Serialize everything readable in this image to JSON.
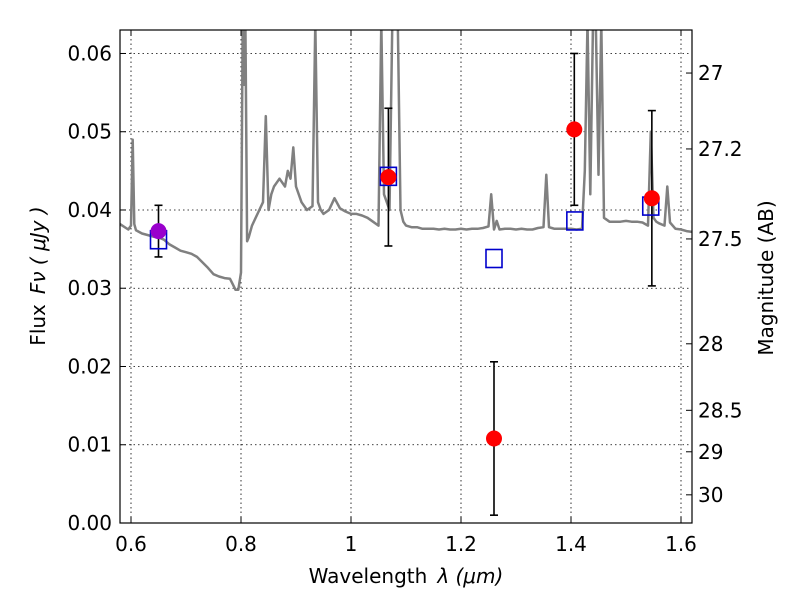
{
  "chart_data": {
    "type": "scatter",
    "title": "",
    "xlabel": "Wavelength",
    "xlabel_math": "λ (μm)",
    "ylabel": "Flux",
    "ylabel_math": "Fν ( μJy )",
    "ylabel_right": "Magnitude (AB)",
    "xlim": [
      0.58,
      1.62
    ],
    "ylim": [
      0.0,
      0.063
    ],
    "xticks": [
      0.6,
      0.8,
      1.0,
      1.2,
      1.4,
      1.6
    ],
    "xtick_labels": [
      "0.6",
      "0.8",
      "1",
      "1.2",
      "1.4",
      "1.6"
    ],
    "yticks": [
      0.0,
      0.01,
      0.02,
      0.03,
      0.04,
      0.05,
      0.06
    ],
    "ytick_labels": [
      "0.00",
      "0.01",
      "0.02",
      "0.03",
      "0.04",
      "0.05",
      "0.06"
    ],
    "right_axis_ticks": [
      {
        "label": "27",
        "flux": 0.0575
      },
      {
        "label": "27.2",
        "flux": 0.0478
      },
      {
        "label": "27.5",
        "flux": 0.0363
      },
      {
        "label": "28",
        "flux": 0.0229
      },
      {
        "label": "28.5",
        "flux": 0.0144
      },
      {
        "label": "29",
        "flux": 0.0091
      },
      {
        "label": "30",
        "flux": 0.0036
      }
    ],
    "grid": true,
    "series": [
      {
        "kind": "line",
        "color": "#808080",
        "x": [
          0.58,
          0.595,
          0.6,
          0.603,
          0.606,
          0.609,
          0.612,
          0.62,
          0.63,
          0.64,
          0.65,
          0.66,
          0.67,
          0.68,
          0.69,
          0.7,
          0.71,
          0.72,
          0.73,
          0.74,
          0.75,
          0.76,
          0.77,
          0.78,
          0.785,
          0.79,
          0.795,
          0.8,
          0.803,
          0.805,
          0.808,
          0.811,
          0.814,
          0.82,
          0.83,
          0.84,
          0.845,
          0.85,
          0.855,
          0.86,
          0.87,
          0.88,
          0.885,
          0.89,
          0.895,
          0.9,
          0.91,
          0.92,
          0.93,
          0.935,
          0.94,
          0.945,
          0.95,
          0.96,
          0.97,
          0.98,
          0.99,
          1.0,
          1.01,
          1.02,
          1.03,
          1.04,
          1.05,
          1.055,
          1.06,
          1.065,
          1.07,
          1.075,
          1.08,
          1.085,
          1.09,
          1.095,
          1.1,
          1.11,
          1.12,
          1.13,
          1.14,
          1.15,
          1.16,
          1.17,
          1.18,
          1.19,
          1.2,
          1.21,
          1.22,
          1.23,
          1.24,
          1.25,
          1.255,
          1.26,
          1.265,
          1.27,
          1.28,
          1.29,
          1.3,
          1.31,
          1.32,
          1.33,
          1.34,
          1.35,
          1.355,
          1.36,
          1.365,
          1.37,
          1.38,
          1.39,
          1.4,
          1.41,
          1.42,
          1.425,
          1.43,
          1.435,
          1.44,
          1.445,
          1.45,
          1.455,
          1.46,
          1.47,
          1.48,
          1.49,
          1.5,
          1.51,
          1.52,
          1.53,
          1.54,
          1.545,
          1.55,
          1.555,
          1.56,
          1.57,
          1.575,
          1.58,
          1.59,
          1.6,
          1.61,
          1.62
        ],
        "y": [
          0.0382,
          0.0375,
          0.038,
          0.049,
          0.0382,
          0.0374,
          0.0373,
          0.037,
          0.0368,
          0.0366,
          0.0365,
          0.0362,
          0.0356,
          0.0352,
          0.0348,
          0.0346,
          0.0344,
          0.034,
          0.0333,
          0.0326,
          0.0318,
          0.0315,
          0.0313,
          0.0312,
          0.0305,
          0.0298,
          0.0298,
          0.032,
          0.064,
          0.056,
          0.064,
          0.036,
          0.0365,
          0.038,
          0.0395,
          0.041,
          0.052,
          0.04,
          0.042,
          0.043,
          0.044,
          0.043,
          0.045,
          0.044,
          0.048,
          0.043,
          0.041,
          0.04,
          0.0405,
          0.064,
          0.041,
          0.04,
          0.0395,
          0.04,
          0.0415,
          0.0402,
          0.0398,
          0.0395,
          0.0395,
          0.0393,
          0.039,
          0.0385,
          0.038,
          0.064,
          0.042,
          0.041,
          0.04,
          0.064,
          0.064,
          0.064,
          0.04,
          0.0385,
          0.038,
          0.0378,
          0.0378,
          0.0376,
          0.0376,
          0.0376,
          0.0375,
          0.0376,
          0.0375,
          0.0375,
          0.0376,
          0.0375,
          0.0376,
          0.0376,
          0.0377,
          0.0379,
          0.042,
          0.0375,
          0.0386,
          0.0375,
          0.0376,
          0.0376,
          0.0375,
          0.0376,
          0.0375,
          0.0375,
          0.0377,
          0.0378,
          0.0445,
          0.0378,
          0.0377,
          0.0376,
          0.0376,
          0.0376,
          0.0376,
          0.0375,
          0.0376,
          0.045,
          0.064,
          0.042,
          0.064,
          0.064,
          0.0445,
          0.064,
          0.039,
          0.0385,
          0.0385,
          0.0385,
          0.0386,
          0.0385,
          0.0385,
          0.0384,
          0.038,
          0.05,
          0.039,
          0.0385,
          0.0383,
          0.038,
          0.043,
          0.0384,
          0.0376,
          0.0375,
          0.0373,
          0.0372
        ]
      },
      {
        "kind": "open-square",
        "color": "#0000cc",
        "x": [
          0.65,
          1.068,
          1.26,
          1.407,
          1.545
        ],
        "y": [
          0.0362,
          0.0443,
          0.0338,
          0.0386,
          0.0405
        ]
      },
      {
        "kind": "filled-circle-errorbar",
        "color": "#ff0000",
        "x": [
          1.068,
          1.26,
          1.406,
          1.547
        ],
        "y": [
          0.0442,
          0.0108,
          0.0503,
          0.0415
        ],
        "err": [
          0.0088,
          0.0098,
          0.0097,
          0.0112
        ]
      },
      {
        "kind": "filled-circle-errorbar",
        "color": "#9900cc",
        "x": [
          0.65
        ],
        "y": [
          0.0373
        ],
        "err": [
          0.0033
        ]
      }
    ]
  }
}
